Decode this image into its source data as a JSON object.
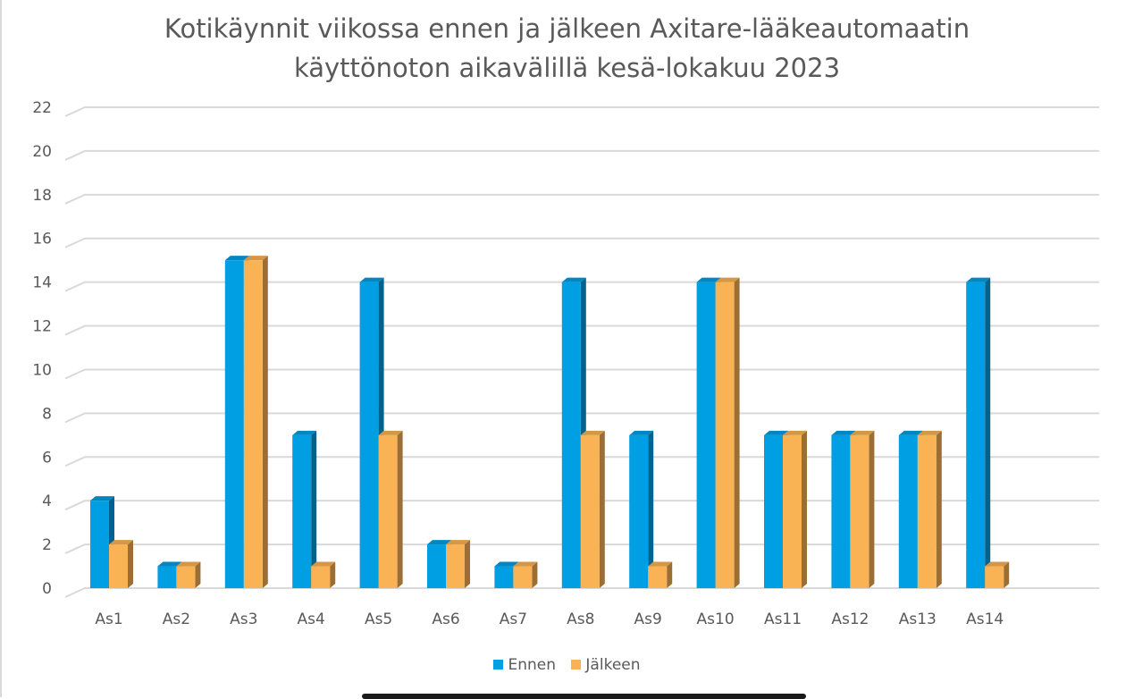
{
  "chart_data": {
    "type": "bar",
    "title_lines": [
      "Kotikäynnit viikossa ennen ja jälkeen Axitare-lääkeautomaatin",
      "käyttönoton aikavälillä kesä-lokakuu 2023"
    ],
    "categories": [
      "As1",
      "As2",
      "As3",
      "As4",
      "As5",
      "As6",
      "As7",
      "As8",
      "As9",
      "As10",
      "As11",
      "As12",
      "As13",
      "As14"
    ],
    "series": [
      {
        "name": "Ennen",
        "color": "#009fe3",
        "values": [
          4,
          1,
          15,
          7,
          14,
          2,
          1,
          14,
          7,
          14,
          7,
          7,
          7,
          14
        ]
      },
      {
        "name": "Jälkeen",
        "color": "#f9b254",
        "values": [
          2,
          1,
          15,
          1,
          7,
          2,
          1,
          7,
          1,
          14,
          7,
          7,
          7,
          1
        ]
      }
    ],
    "yticks": [
      "0",
      "2",
      "4",
      "6",
      "8",
      "10",
      "12",
      "14",
      "16",
      "18",
      "20",
      "22"
    ],
    "ylim": [
      0,
      22
    ],
    "grid": true,
    "legend_position": "bottom",
    "style": "3d-column"
  }
}
